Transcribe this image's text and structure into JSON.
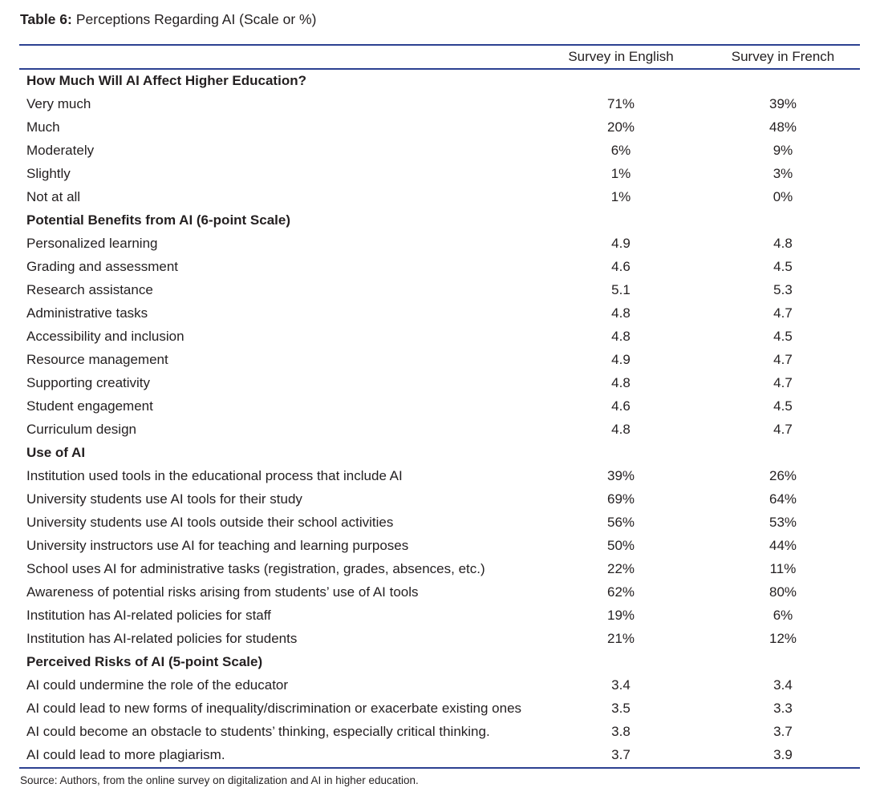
{
  "title": {
    "label": "Table 6:",
    "text": "Perceptions Regarding AI (Scale or %)"
  },
  "columns": [
    "Survey in English",
    "Survey in French"
  ],
  "sections": [
    {
      "header": "How Much Will AI Affect Higher Education?",
      "rows": [
        {
          "label": "Very much",
          "english": "71%",
          "french": "39%"
        },
        {
          "label": "Much",
          "english": "20%",
          "french": "48%"
        },
        {
          "label": "Moderately",
          "english": "6%",
          "french": "9%"
        },
        {
          "label": "Slightly",
          "english": "1%",
          "french": "3%"
        },
        {
          "label": "Not at all",
          "english": "1%",
          "french": "0%"
        }
      ]
    },
    {
      "header": "Potential Benefits from AI (6-point Scale)",
      "rows": [
        {
          "label": "Personalized learning",
          "english": "4.9",
          "french": "4.8"
        },
        {
          "label": "Grading and assessment",
          "english": "4.6",
          "french": "4.5"
        },
        {
          "label": "Research assistance",
          "english": "5.1",
          "french": "5.3"
        },
        {
          "label": "Administrative tasks",
          "english": "4.8",
          "french": "4.7"
        },
        {
          "label": "Accessibility and inclusion",
          "english": "4.8",
          "french": "4.5"
        },
        {
          "label": "Resource management",
          "english": "4.9",
          "french": "4.7"
        },
        {
          "label": "Supporting creativity",
          "english": "4.8",
          "french": "4.7"
        },
        {
          "label": "Student engagement",
          "english": "4.6",
          "french": "4.5"
        },
        {
          "label": "Curriculum design",
          "english": "4.8",
          "french": "4.7"
        }
      ]
    },
    {
      "header": "Use of AI",
      "rows": [
        {
          "label": "Institution used tools in the educational process that include AI",
          "english": "39%",
          "french": "26%"
        },
        {
          "label": "University students use AI tools for their study",
          "english": "69%",
          "french": "64%"
        },
        {
          "label": "University students use AI tools outside their school activities",
          "english": "56%",
          "french": "53%"
        },
        {
          "label": "University instructors use AI for teaching and learning purposes",
          "english": "50%",
          "french": "44%"
        },
        {
          "label": "School uses AI for administrative tasks (registration, grades, absences, etc.)",
          "english": "22%",
          "french": "11%"
        },
        {
          "label": "Awareness of potential risks arising from students’ use of AI tools",
          "english": "62%",
          "french": "80%"
        },
        {
          "label": "Institution has AI-related policies for staff",
          "english": "19%",
          "french": "6%"
        },
        {
          "label": "Institution has AI-related policies for students",
          "english": "21%",
          "french": "12%"
        }
      ]
    },
    {
      "header": "Perceived Risks of AI (5-point Scale)",
      "rows": [
        {
          "label": "AI could undermine the role of the educator",
          "english": "3.4",
          "french": "3.4"
        },
        {
          "label": "AI could lead to new forms of inequality/discrimination or exacerbate existing ones",
          "english": "3.5",
          "french": "3.3"
        },
        {
          "label": "AI could become an obstacle to students’ thinking, especially critical thinking.",
          "english": "3.8",
          "french": "3.7"
        },
        {
          "label": "AI could lead to more plagiarism.",
          "english": "3.7",
          "french": "3.9"
        }
      ]
    }
  ],
  "footer": "Source: Authors, from the online survey on digitalization and AI in higher education.",
  "colors": {
    "rule": "#2c4191",
    "text": "#231f20"
  }
}
